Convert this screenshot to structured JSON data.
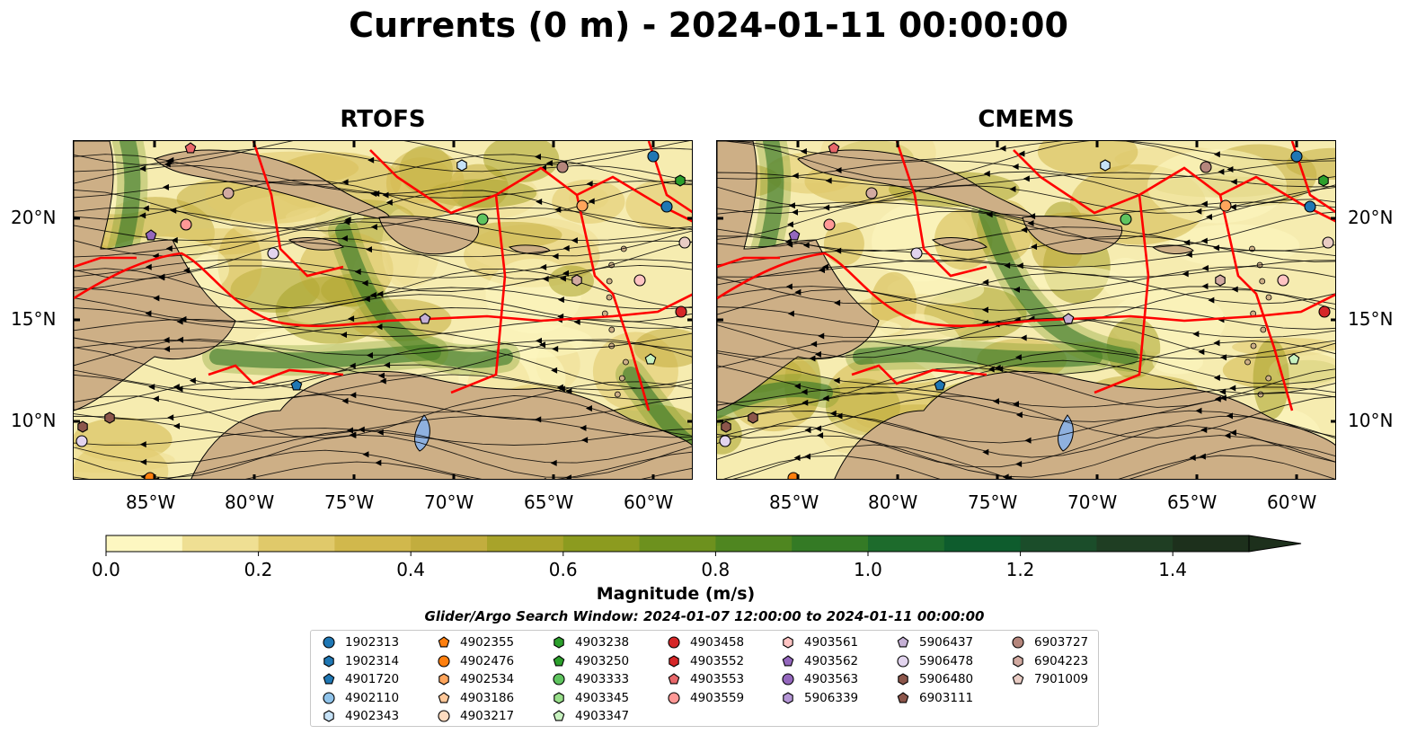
{
  "figure": {
    "title": "Currents (0 m) - 2024-01-11 00:00:00",
    "search_window": "Glider/Argo Search Window: 2024-01-07 12:00:00 to 2024-01-11 00:00:00"
  },
  "panels": [
    {
      "title": "RTOFS"
    },
    {
      "title": "CMEMS"
    }
  ],
  "axes": {
    "lon_ticks": [
      "85°W",
      "80°W",
      "75°W",
      "70°W",
      "65°W",
      "60°W"
    ],
    "lat_ticks": [
      "20°N",
      "15°N",
      "10°N"
    ]
  },
  "colorbar": {
    "label": "Magnitude (m/s)",
    "ticks": [
      "0.0",
      "0.2",
      "0.4",
      "0.6",
      "0.8",
      "1.0",
      "1.2",
      "1.4"
    ],
    "range": [
      0.0,
      1.5
    ],
    "extend": "max",
    "colors": [
      "#fdf7c1",
      "#efdf93",
      "#e0c96a",
      "#d1b84c",
      "#c2ad3e",
      "#a8a32a",
      "#8c9b1f",
      "#6d911e",
      "#4f8620",
      "#347a25",
      "#1d6b2c",
      "#0e5c2d",
      "#1b4d2a",
      "#1f3e23",
      "#1d301c"
    ]
  },
  "map_style": {
    "land_color": "#cdaf86",
    "ocean_low_color": "#f6ecb0",
    "boundary_color": "#ff0000",
    "lake_color": "#8fb1df"
  },
  "legend": {
    "items": [
      {
        "id": "1902313",
        "color": "#1f77b4",
        "marker": "circle"
      },
      {
        "id": "1902314",
        "color": "#1f77b4",
        "marker": "hexagon"
      },
      {
        "id": "4901720",
        "color": "#1f77b4",
        "marker": "pentagon"
      },
      {
        "id": "4902110",
        "color": "#8fc3ea",
        "marker": "circle"
      },
      {
        "id": "4902343",
        "color": "#c6e2f7",
        "marker": "hexagon"
      },
      {
        "id": "4902355",
        "color": "#ff7f0e",
        "marker": "pentagon"
      },
      {
        "id": "4902476",
        "color": "#ff7f0e",
        "marker": "circle"
      },
      {
        "id": "4902534",
        "color": "#ffa55c",
        "marker": "hexagon"
      },
      {
        "id": "4903186",
        "color": "#ffc89a",
        "marker": "pentagon"
      },
      {
        "id": "4903217",
        "color": "#ffdcc0",
        "marker": "circle"
      },
      {
        "id": "4903238",
        "color": "#2ca02c",
        "marker": "hexagon"
      },
      {
        "id": "4903250",
        "color": "#2ca02c",
        "marker": "pentagon"
      },
      {
        "id": "4903333",
        "color": "#5fc45f",
        "marker": "circle"
      },
      {
        "id": "4903345",
        "color": "#98df8a",
        "marker": "hexagon"
      },
      {
        "id": "4903347",
        "color": "#c8f2c0",
        "marker": "pentagon"
      },
      {
        "id": "4903458",
        "color": "#d62728",
        "marker": "circle"
      },
      {
        "id": "4903552",
        "color": "#d62728",
        "marker": "hexagon"
      },
      {
        "id": "4903553",
        "color": "#e8676a",
        "marker": "pentagon"
      },
      {
        "id": "4903559",
        "color": "#ff9896",
        "marker": "circle"
      },
      {
        "id": "4903561",
        "color": "#ffc4c3",
        "marker": "hexagon"
      },
      {
        "id": "4903562",
        "color": "#9467bd",
        "marker": "pentagon"
      },
      {
        "id": "4903563",
        "color": "#9467bd",
        "marker": "circle"
      },
      {
        "id": "5906339",
        "color": "#b596d6",
        "marker": "hexagon"
      },
      {
        "id": "5906437",
        "color": "#c5b0d5",
        "marker": "pentagon"
      },
      {
        "id": "5906478",
        "color": "#e2d4ee",
        "marker": "circle"
      },
      {
        "id": "5906480",
        "color": "#8c564b",
        "marker": "hexagon"
      },
      {
        "id": "6903111",
        "color": "#8c564b",
        "marker": "pentagon"
      },
      {
        "id": "6903727",
        "color": "#b5867c",
        "marker": "circle"
      },
      {
        "id": "6904223",
        "color": "#d2aaa1",
        "marker": "hexagon"
      },
      {
        "id": "7901009",
        "color": "#e9ccc4",
        "marker": "pentagon"
      }
    ]
  }
}
